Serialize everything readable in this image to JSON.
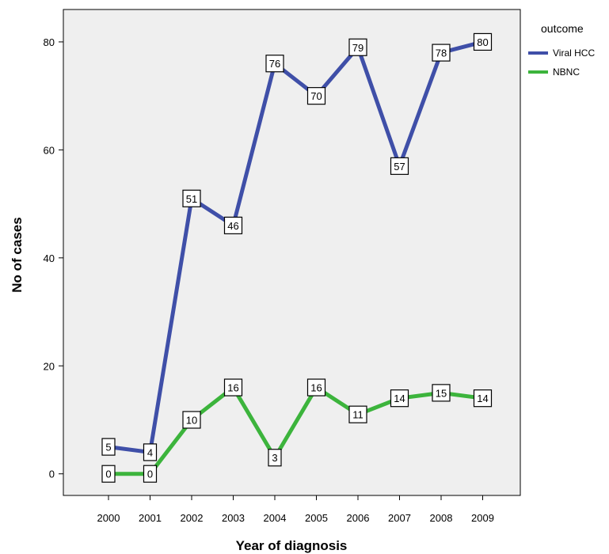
{
  "chart_data": {
    "type": "line",
    "xlabel": "Year of diagnosis",
    "ylabel": "No of cases",
    "x": [
      "2000",
      "2001",
      "2002",
      "2003",
      "2004",
      "2005",
      "2006",
      "2007",
      "2008",
      "2009"
    ],
    "yticks": [
      "0",
      "20",
      "40",
      "60",
      "80"
    ],
    "ylim": [
      -4,
      86
    ],
    "grid": false,
    "legend": {
      "title": "outcome",
      "placement": "top-right"
    },
    "series": [
      {
        "name": "Viral HCC",
        "color": "#3f4fa8",
        "values": [
          5,
          4,
          51,
          46,
          76,
          70,
          79,
          57,
          78,
          80
        ]
      },
      {
        "name": "NBNC",
        "color": "#3cb43c",
        "values": [
          0,
          0,
          10,
          16,
          3,
          16,
          11,
          14,
          15,
          14
        ]
      }
    ]
  }
}
